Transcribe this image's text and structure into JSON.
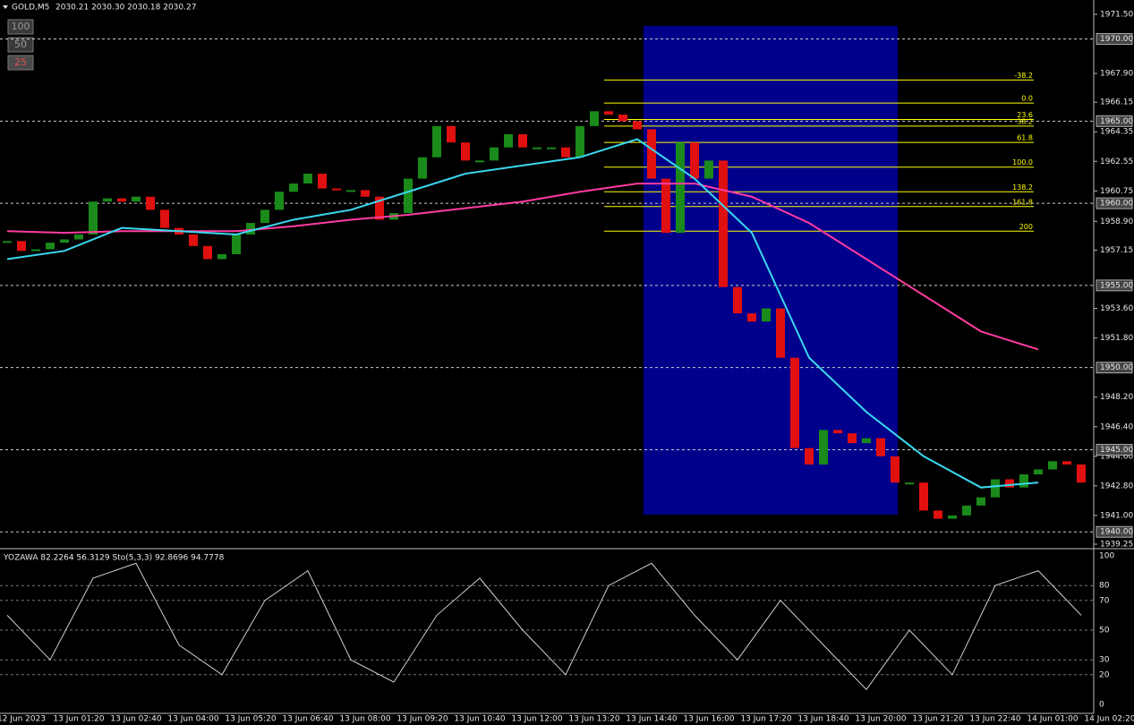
{
  "header": {
    "symbol": "GOLD,M5",
    "quote": "2030.21 2030.30 2030.18 2030.27"
  },
  "buttons": [
    "100",
    "50",
    "25"
  ],
  "price_chart": {
    "type": "bar",
    "ylim": [
      1939.25,
      1971.5
    ],
    "yticks": [
      {
        "value": 1971.5,
        "label": "1971.50"
      },
      {
        "value": 1967.9,
        "label": "1967.90"
      },
      {
        "value": 1966.15,
        "label": "1966.15"
      },
      {
        "value": 1964.35,
        "label": "1964.35"
      },
      {
        "value": 1962.55,
        "label": "1962.55"
      },
      {
        "value": 1960.75,
        "label": "1960.75"
      },
      {
        "value": 1958.9,
        "label": "1958.90"
      },
      {
        "value": 1957.15,
        "label": "1957.15"
      },
      {
        "value": 1953.6,
        "label": "1953.60"
      },
      {
        "value": 1951.8,
        "label": "1951.80"
      },
      {
        "value": 1948.2,
        "label": "1948.20"
      },
      {
        "value": 1946.4,
        "label": "1946.40"
      },
      {
        "value": 1944.6,
        "label": "1944.60"
      },
      {
        "value": 1942.8,
        "label": "1942.80"
      },
      {
        "value": 1941,
        "label": "1941.00"
      },
      {
        "value": 1939.25,
        "label": "1939.25"
      }
    ],
    "levels": [
      {
        "value": 1970,
        "label": "1970.00"
      },
      {
        "value": 1965,
        "label": "1965.00"
      },
      {
        "value": 1960,
        "label": "1960.00"
      },
      {
        "value": 1955,
        "label": "1955.00"
      },
      {
        "value": 1950,
        "label": "1950.00"
      },
      {
        "value": 1945,
        "label": "1945.00"
      },
      {
        "value": 1940,
        "label": "1940.00"
      }
    ],
    "up_color": "#1a8a1a",
    "down_color": "#e01010",
    "closes": [
      1957.7,
      1957.1,
      1957.2,
      1957.6,
      1957.8,
      1958.1,
      1960.1,
      1960.3,
      1960.1,
      1960.4,
      1959.6,
      1958.5,
      1958.1,
      1957.4,
      1956.6,
      1956.9,
      1958.1,
      1958.8,
      1959.6,
      1960.7,
      1961.2,
      1961.8,
      1960.9,
      1960.8,
      1960.8,
      1960.4,
      1959.0,
      1959.4,
      1961.5,
      1962.8,
      1964.7,
      1963.7,
      1962.6,
      1962.6,
      1963.4,
      1964.2,
      1963.4,
      1963.4,
      1963.4,
      1962.8,
      1964.7,
      1965.6,
      1965.4,
      1965.0,
      1964.5,
      1961.5,
      1958.2,
      1963.7,
      1961.5,
      1962.6,
      1954.9,
      1953.3,
      1952.8,
      1953.6,
      1950.6,
      1945.1,
      1944.1,
      1946.2,
      1946.0,
      1945.4,
      1945.7,
      1944.6,
      1943.0,
      1943.0,
      1941.3,
      1940.8,
      1941.0,
      1941.6,
      1942.1,
      1943.2,
      1942.7,
      1943.5,
      1943.8,
      1944.3,
      1944.1,
      1943.0
    ],
    "ma_fast": {
      "color": "#3ad8f0",
      "values": [
        1956.6,
        1957.1,
        1958.5,
        1958.3,
        1958.1,
        1959.0,
        1959.6,
        1960.7,
        1961.8,
        1962.3,
        1962.8,
        1963.9,
        1961.5,
        1958.2,
        1950.6,
        1947.3,
        1944.6,
        1942.7,
        1943.0
      ]
    },
    "ma_slow": {
      "color": "#ff3ca0",
      "values": [
        1958.3,
        1958.2,
        1958.3,
        1958.3,
        1958.3,
        1958.6,
        1959.0,
        1959.3,
        1959.7,
        1960.1,
        1960.7,
        1961.2,
        1961.2,
        1960.4,
        1958.8,
        1956.6,
        1954.4,
        1952.2,
        1951.1
      ]
    },
    "fib": {
      "color": "#ffff00",
      "levels": [
        {
          "label": "-38.2",
          "price": 1967.5
        },
        {
          "label": "0.0",
          "price": 1966.1
        },
        {
          "label": "23.6",
          "price": 1965.1
        },
        {
          "label": "38.2",
          "price": 1964.7
        },
        {
          "label": "61.8",
          "price": 1963.7
        },
        {
          "label": "100.0",
          "price": 1962.2
        },
        {
          "label": "138.2",
          "price": 1960.7
        },
        {
          "label": "161.8",
          "price": 1959.8
        },
        {
          "label": "200",
          "price": 1958.3
        }
      ]
    }
  },
  "oscillator": {
    "label": "YOZAWA 82.2264 56.3129 Sto(5,3,3) 92.8696 94.7778",
    "ylim": [
      0,
      100
    ],
    "yticks": [
      100,
      80,
      70,
      50,
      30,
      20,
      0
    ],
    "color": "#d0d0d0",
    "values": [
      60,
      30,
      85,
      95,
      40,
      20,
      70,
      90,
      30,
      15,
      60,
      85,
      50,
      20,
      80,
      95,
      60,
      30,
      70,
      40,
      10,
      50,
      20,
      80,
      90,
      60
    ]
  },
  "time_labels": [
    "12 Jun 2023",
    "13 Jun 01:20",
    "13 Jun 02:40",
    "13 Jun 04:00",
    "13 Jun 05:20",
    "13 Jun 06:40",
    "13 Jun 08:00",
    "13 Jun 09:20",
    "13 Jun 10:40",
    "13 Jun 12:00",
    "13 Jun 13:20",
    "13 Jun 14:40",
    "13 Jun 16:00",
    "13 Jun 17:20",
    "13 Jun 18:40",
    "13 Jun 20:00",
    "13 Jun 21:20",
    "13 Jun 22:40",
    "14 Jun 01:00",
    "14 Jun 02:20"
  ]
}
